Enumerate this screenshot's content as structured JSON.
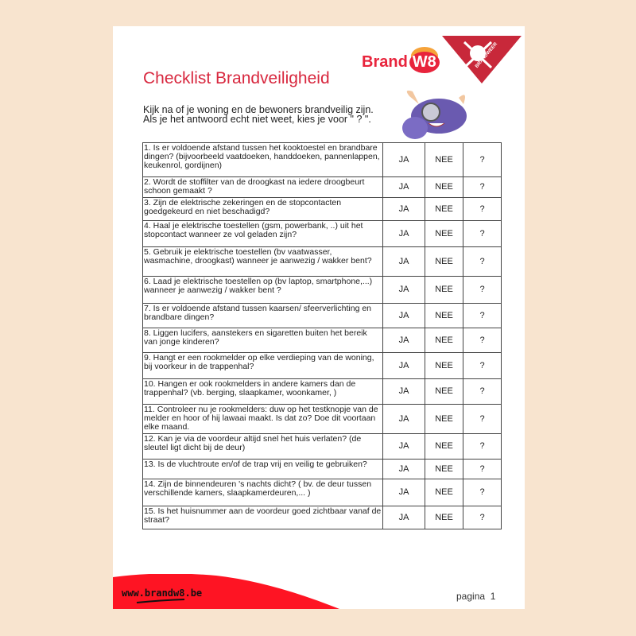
{
  "header": {
    "logo_text": "Brand",
    "logo_badge": "W8",
    "partner_logo_text": "BRANDWEER",
    "title": "Checklist Brandveiligheid",
    "intro_line1": "Kijk na of je woning en de bewoners brandveilig zijn.",
    "intro_line2": "Als je het antwoord echt niet weet, kies je voor \" ? \"."
  },
  "options": {
    "yes": "JA",
    "no": "NEE",
    "unknown": "?"
  },
  "questions": [
    "1. Is er voldoende afstand tussen het kooktoestel en brandbare dingen? (bijvoorbeeld vaatdoeken, handdoeken, pannenlappen, keukenrol, gordijnen)",
    "2. Wordt de stoffilter van de droogkast na iedere droogbeurt schoon gemaakt ?",
    "3. Zijn de elektrische zekeringen en de stopcontacten goedgekeurd en niet beschadigd?",
    "4. Haal je elektrische toestellen (gsm, powerbank, ..) uit het stopcontact wanneer ze vol geladen zijn?",
    "5. Gebruik je elektrische toestellen (bv vaatwasser, wasmachine, droogkast) wanneer je aanwezig / wakker bent?",
    "6. Laad je elektrische toestellen op (bv laptop, smartphone,...) wanneer je aanwezig / wakker bent ?",
    "7. Is er voldoende afstand tussen kaarsen/ sfeerverlichting en brandbare dingen?",
    "8. Liggen lucifers, aanstekers en sigaretten buiten het bereik van jonge kinderen?",
    "9. Hangt er een rookmelder op elke verdieping van de woning, bij voorkeur in de trappenhal?",
    "10. Hangen er ook rookmelders in andere kamers dan de trappenhal? (vb. berging, slaapkamer, woonkamer, )",
    "11. Controleer nu je rookmelders: duw op het testknopje van de melder en hoor of hij lawaai maakt. Is dat zo? Doe dit voortaan elke maand.",
    "12. Kan je via de voordeur altijd snel het huis verlaten? (de sleutel ligt dicht bij de deur)",
    "13. Is de vluchtroute en/of de trap vrij en veilig te gebruiken?",
    "14. Zijn de binnendeuren 's nachts dicht? ( bv. de deur tussen verschillende kamers, slaapkamerdeuren,... )",
    "15. Is het huisnummer aan de voordeur goed zichtbaar vanaf de straat?"
  ],
  "footer": {
    "url": "www.brandw8.be",
    "page_label": "pagina",
    "page_number": "1"
  },
  "colors": {
    "brand_red": "#e8243c",
    "background": "#f8e4cf"
  }
}
